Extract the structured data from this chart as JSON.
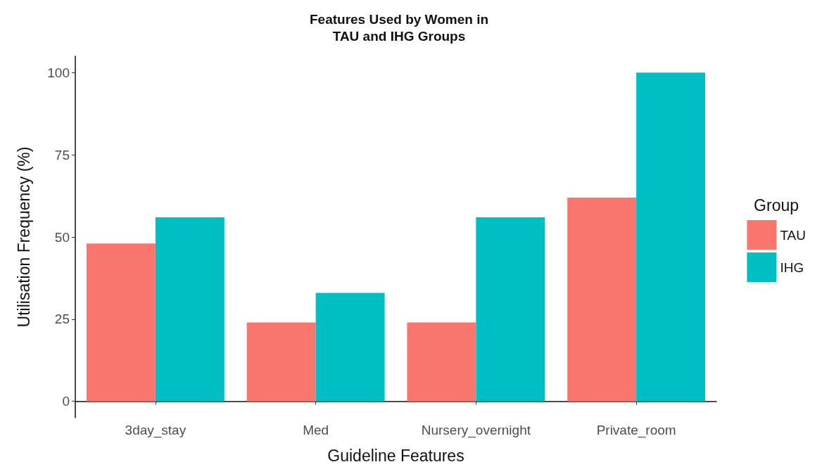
{
  "chart_data": {
    "type": "bar",
    "title": "Features Used by Women in\nTAU and IHG Groups",
    "xlabel": "Guideline Features",
    "ylabel": "Utilisation Frequency (%)",
    "legend_title": "Group",
    "categories": [
      "3day_stay",
      "Med",
      "Nursery_overnight",
      "Private_room"
    ],
    "series": [
      {
        "name": "TAU",
        "color": "#f8766d",
        "values": [
          48,
          24,
          24,
          62
        ]
      },
      {
        "name": "IHG",
        "color": "#00bfc4",
        "values": [
          56,
          33,
          56,
          100
        ]
      }
    ],
    "ylim": [
      -5,
      105
    ],
    "yticks": [
      0,
      25,
      50,
      75,
      100
    ],
    "grid": false,
    "legend": "right"
  }
}
